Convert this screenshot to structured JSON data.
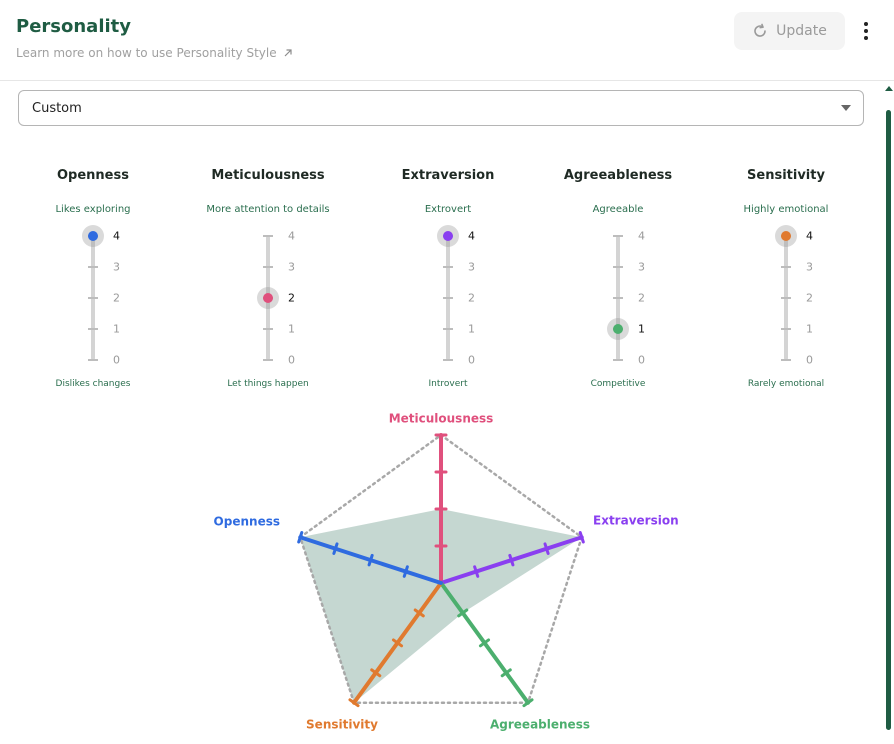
{
  "header": {
    "title": "Personality",
    "subtitle": "Learn more on how to use Personality Style",
    "update_label": "Update"
  },
  "preset_select": {
    "value": "Custom"
  },
  "scale": {
    "min": 0,
    "max": 4,
    "ticks": [
      "4",
      "3",
      "2",
      "1",
      "0"
    ]
  },
  "traits": [
    {
      "key": "openness",
      "name": "Openness",
      "high_label": "Likes exploring",
      "low_label": "Dislikes changes",
      "value": 4,
      "color": "#2f6be0"
    },
    {
      "key": "meticulousness",
      "name": "Meticulousness",
      "high_label": "More attention to details",
      "low_label": "Let things happen",
      "value": 2,
      "color": "#e0507d"
    },
    {
      "key": "extraversion",
      "name": "Extraversion",
      "high_label": "Extrovert",
      "low_label": "Introvert",
      "value": 4,
      "color": "#8a3ff0"
    },
    {
      "key": "agreeableness",
      "name": "Agreeableness",
      "high_label": "Agreeable",
      "low_label": "Competitive",
      "value": 1,
      "color": "#4caf6e"
    },
    {
      "key": "sensitivity",
      "name": "Sensitivity",
      "high_label": "Highly emotional",
      "low_label": "Rarely emotional",
      "value": 4,
      "color": "#e07a2f"
    }
  ],
  "chart_data": {
    "type": "radar",
    "axes": [
      "Meticulousness",
      "Extraversion",
      "Agreeableness",
      "Sensitivity",
      "Openness"
    ],
    "values": [
      2,
      4,
      1,
      4,
      4
    ],
    "range": [
      0,
      4
    ],
    "colors": {
      "Meticulousness": "#e0507d",
      "Extraversion": "#8a3ff0",
      "Agreeableness": "#4caf6e",
      "Sensitivity": "#e07a2f",
      "Openness": "#2f6be0"
    },
    "fill_color": "#c5d7d1"
  }
}
